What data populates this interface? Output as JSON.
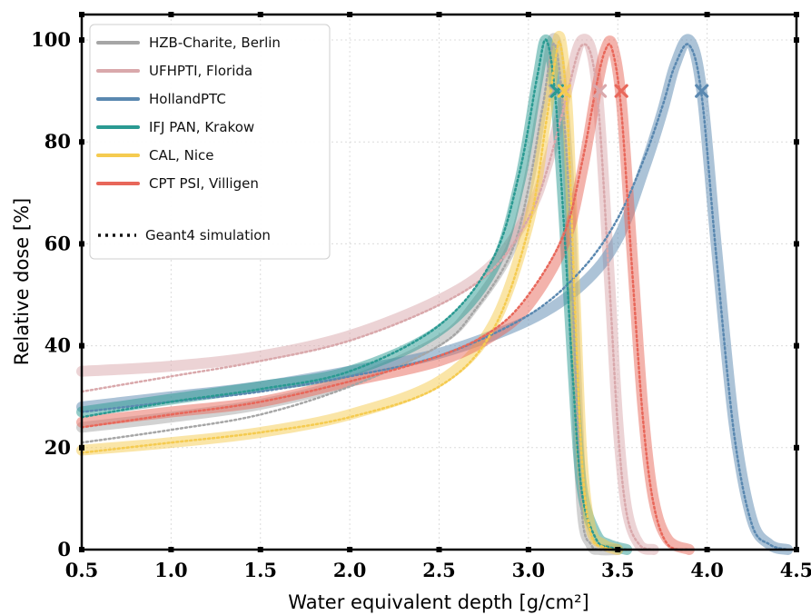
{
  "chart_data": {
    "type": "line",
    "title": "",
    "xlabel": "Water equivalent depth [g/cm²]",
    "ylabel": "Relative dose [%]",
    "xlim": [
      0.5,
      4.5
    ],
    "ylim": [
      0,
      105
    ],
    "xticks": [
      "0.5",
      "1.0",
      "1.5",
      "2.0",
      "2.5",
      "3.0",
      "3.5",
      "4.0",
      "4.5"
    ],
    "yticks": [
      "0",
      "20",
      "40",
      "60",
      "80",
      "100"
    ],
    "grid": true,
    "legend_position": "top-left",
    "series": [
      {
        "name": "HZB-Charite, Berlin",
        "color": "#a6a6a6",
        "x": [
          0.5,
          1.0,
          1.5,
          2.0,
          2.5,
          2.7,
          2.9,
          3.0,
          3.08,
          3.15,
          3.22,
          3.26,
          3.3,
          3.35,
          3.4,
          3.5
        ],
        "y": [
          24,
          26,
          28.5,
          33,
          41,
          48,
          59,
          72,
          88,
          100,
          75,
          40,
          8,
          1,
          0,
          0
        ],
        "sim_x": [
          0.5,
          1.0,
          1.5,
          2.0,
          2.5,
          2.7,
          2.9,
          3.0,
          3.08,
          3.15,
          3.22,
          3.26,
          3.3,
          3.35,
          3.4,
          3.5
        ],
        "sim_y": [
          21,
          23.5,
          26.5,
          32,
          40,
          47,
          58,
          71,
          87,
          99,
          74,
          38,
          7,
          1,
          0,
          0
        ],
        "marker": [
          3.15,
          90
        ]
      },
      {
        "name": "UFHPTI, Florida",
        "color": "#d9a8ab",
        "x": [
          0.5,
          1.0,
          1.5,
          2.0,
          2.5,
          2.8,
          3.0,
          3.1,
          3.2,
          3.3,
          3.38,
          3.45,
          3.5,
          3.55,
          3.62,
          3.7
        ],
        "y": [
          35,
          36,
          38,
          42,
          49,
          56,
          66,
          75,
          88,
          100,
          92,
          55,
          25,
          8,
          1,
          0
        ],
        "sim_x": [
          0.5,
          1.0,
          1.5,
          2.0,
          2.5,
          2.8,
          3.0,
          3.1,
          3.2,
          3.3,
          3.38,
          3.45,
          3.5,
          3.55,
          3.62,
          3.7
        ],
        "sim_y": [
          31,
          34,
          37,
          41,
          48,
          55,
          65,
          74,
          87,
          99,
          91,
          54,
          24,
          7,
          1,
          0
        ],
        "marker": [
          3.4,
          90
        ]
      },
      {
        "name": "HollandPTC",
        "color": "#5a88b0",
        "x": [
          0.5,
          1.0,
          1.5,
          2.0,
          2.5,
          3.0,
          3.3,
          3.5,
          3.65,
          3.75,
          3.82,
          3.9,
          3.97,
          4.05,
          4.15,
          4.25,
          4.35,
          4.45
        ],
        "y": [
          28,
          30,
          32,
          35,
          38.5,
          45,
          52,
          61,
          75,
          86,
          95,
          100,
          90,
          60,
          25,
          6,
          1,
          0
        ],
        "sim_x": [
          0.5,
          1.0,
          1.5,
          2.0,
          2.5,
          3.0,
          3.3,
          3.5,
          3.65,
          3.75,
          3.82,
          3.9,
          3.97,
          4.05,
          4.15,
          4.25,
          4.35,
          4.45
        ],
        "sim_y": [
          27,
          29,
          31,
          34,
          38,
          46,
          55,
          65,
          77,
          87,
          95,
          99,
          89,
          58,
          23,
          5,
          1,
          0
        ],
        "marker": [
          3.97,
          90
        ]
      },
      {
        "name": "IFJ PAN, Krakow",
        "color": "#2a9a92",
        "x": [
          0.5,
          1.0,
          1.5,
          2.0,
          2.5,
          2.8,
          2.95,
          3.05,
          3.1,
          3.15,
          3.2,
          3.25,
          3.3,
          3.38,
          3.45,
          3.55
        ],
        "y": [
          27,
          29.5,
          32,
          35,
          43,
          55,
          72,
          92,
          100,
          90,
          65,
          35,
          12,
          3,
          1,
          0
        ],
        "sim_x": [
          0.5,
          1.0,
          1.5,
          2.0,
          2.5,
          2.8,
          2.95,
          3.05,
          3.1,
          3.15,
          3.2,
          3.25,
          3.3,
          3.38,
          3.45,
          3.55
        ],
        "sim_y": [
          26,
          29,
          31.5,
          35,
          44,
          57,
          74,
          93,
          100,
          89,
          63,
          33,
          11,
          2,
          0.5,
          0
        ],
        "marker": [
          3.16,
          90
        ]
      },
      {
        "name": "CAL, Nice",
        "color": "#f5cb50",
        "x": [
          0.5,
          1.0,
          1.5,
          2.0,
          2.5,
          2.8,
          3.0,
          3.1,
          3.15,
          3.18,
          3.22,
          3.26,
          3.3,
          3.35,
          3.42,
          3.5
        ],
        "y": [
          19.5,
          21,
          23,
          26.5,
          33,
          44,
          64,
          85,
          97,
          100,
          85,
          50,
          18,
          4,
          1,
          0
        ],
        "sim_x": [
          0.5,
          1.0,
          1.5,
          2.0,
          2.5,
          2.8,
          3.0,
          3.1,
          3.15,
          3.18,
          3.22,
          3.26,
          3.3,
          3.35,
          3.42,
          3.5
        ],
        "sim_y": [
          19,
          21,
          23,
          26,
          32,
          43,
          63,
          84,
          96,
          99,
          84,
          48,
          17,
          3,
          0.5,
          0
        ],
        "marker": [
          3.2,
          90
        ]
      },
      {
        "name": "CPT PSI, Villigen",
        "color": "#e8675a",
        "x": [
          0.5,
          1.0,
          1.5,
          2.0,
          2.5,
          2.8,
          3.0,
          3.2,
          3.3,
          3.38,
          3.43,
          3.47,
          3.52,
          3.58,
          3.64,
          3.7,
          3.78,
          3.9
        ],
        "y": [
          25,
          27,
          29,
          33,
          37,
          42,
          48,
          60,
          74,
          90,
          98,
          99,
          88,
          58,
          28,
          10,
          2,
          0
        ],
        "sim_x": [
          0.5,
          1.0,
          1.5,
          2.0,
          2.5,
          2.8,
          3.0,
          3.2,
          3.3,
          3.38,
          3.43,
          3.47,
          3.52,
          3.58,
          3.64,
          3.7,
          3.78,
          3.9
        ],
        "sim_y": [
          24,
          26.5,
          29,
          33,
          38,
          43,
          50,
          62,
          76,
          91,
          98,
          98,
          86,
          55,
          26,
          9,
          1,
          0
        ],
        "marker": [
          3.52,
          90
        ]
      }
    ],
    "simulation_legend": "Geant4 simulation"
  }
}
